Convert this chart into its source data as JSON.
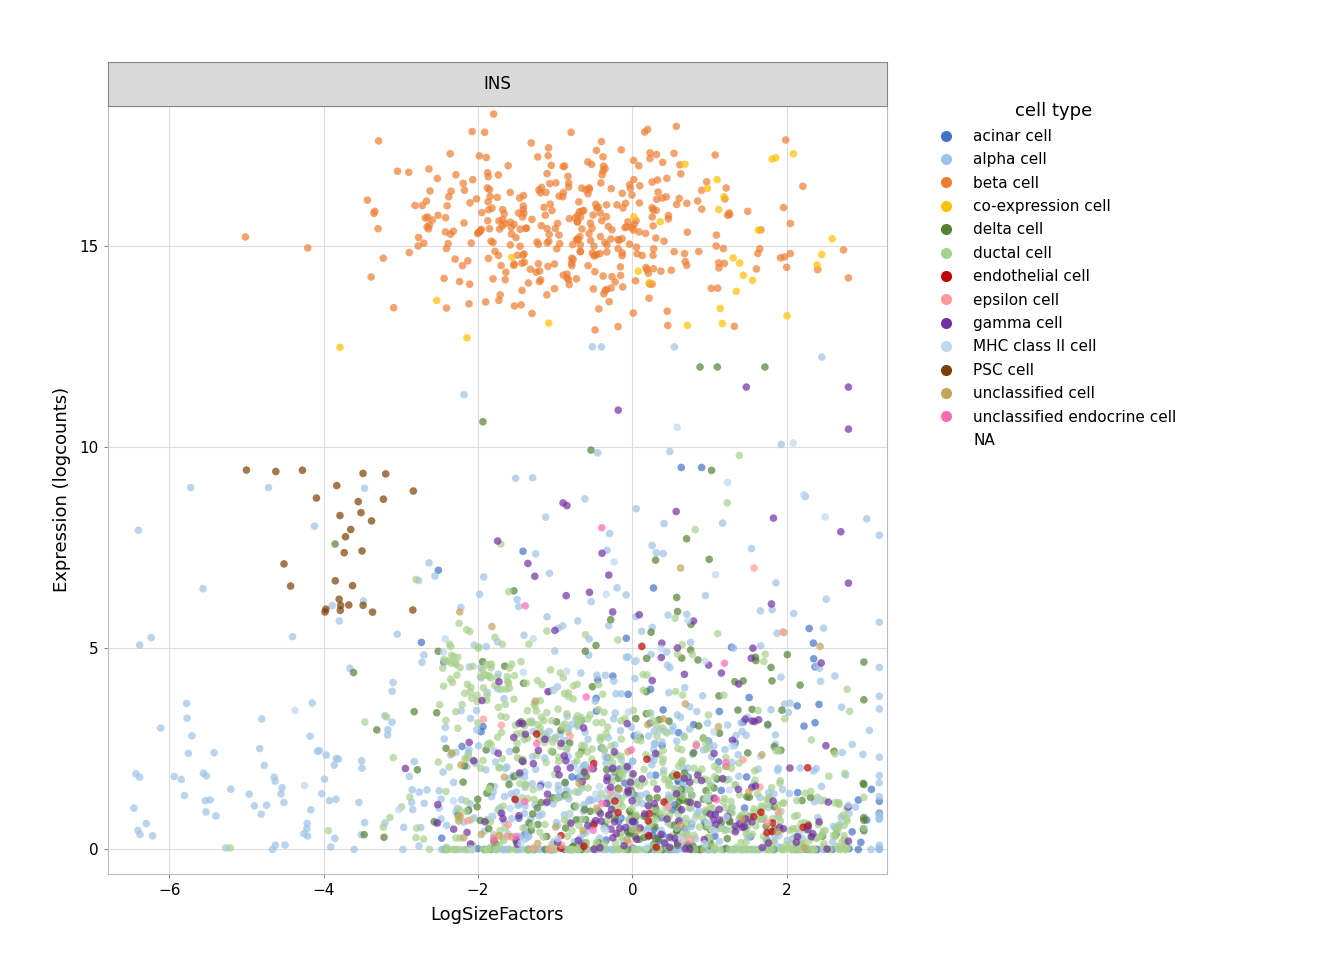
{
  "title": "INS",
  "xlabel": "LogSizeFactors",
  "ylabel": "Expression (logcounts)",
  "xlim": [
    -6.8,
    3.3
  ],
  "ylim": [
    -0.6,
    18.5
  ],
  "yticks": [
    0,
    5,
    10,
    15
  ],
  "xticks": [
    -6,
    -4,
    -2,
    0,
    2
  ],
  "legend_title": "cell type",
  "cell_types": [
    "acinar cell",
    "alpha cell",
    "beta cell",
    "co-expression cell",
    "delta cell",
    "ductal cell",
    "endothelial cell",
    "epsilon cell",
    "gamma cell",
    "MHC class II cell",
    "PSC cell",
    "unclassified cell",
    "unclassified endocrine cell",
    "NA"
  ],
  "colors": {
    "acinar cell": "#4472C4",
    "alpha cell": "#9DC3E6",
    "beta cell": "#ED7D31",
    "co-expression cell": "#FFC000",
    "delta cell": "#548235",
    "ductal cell": "#A9D18E",
    "endothelial cell": "#C00000",
    "epsilon cell": "#FF9999",
    "gamma cell": "#7030A0",
    "MHC class II cell": "#BDD7EE",
    "PSC cell": "#7B3F00",
    "unclassified cell": "#C4A35A",
    "unclassified endocrine cell": "#FF69B4",
    "NA": "#FFFFFF"
  },
  "point_size": 30,
  "alpha": 0.7,
  "background_color": "#FFFFFF",
  "panel_background": "#FFFFFF",
  "grid_color": "#DDDDDD",
  "title_bg": "#D9D9D9",
  "seed": 42
}
